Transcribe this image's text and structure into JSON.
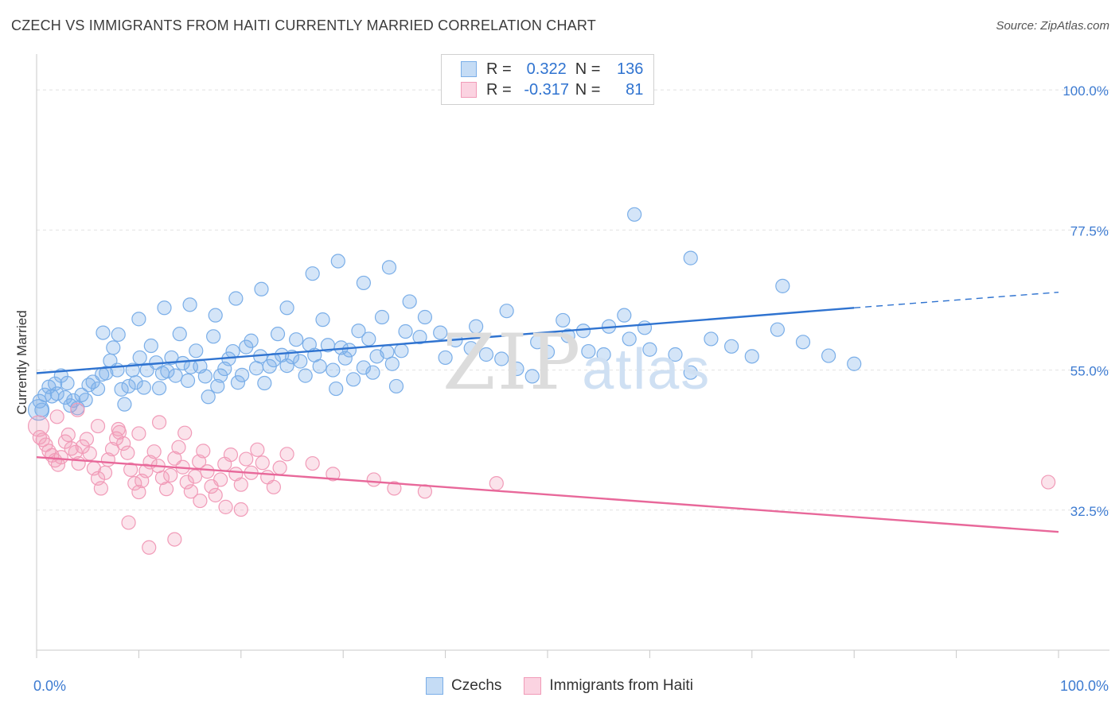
{
  "title": "CZECH VS IMMIGRANTS FROM HAITI CURRENTLY MARRIED CORRELATION CHART",
  "source": "Source: ZipAtlas.com",
  "watermark": {
    "zip": "ZIP",
    "atlas": "atlas"
  },
  "legend": {
    "rows": [
      {
        "r_label": "R =",
        "r_value": "0.322",
        "n_label": "N =",
        "n_value": "136",
        "color": "#7aaee8"
      },
      {
        "r_label": "R =",
        "r_value": "-0.317",
        "n_label": "N =",
        "n_value": "81",
        "color": "#f19bb8"
      }
    ]
  },
  "bottom_legend": [
    {
      "label": "Czechs",
      "color": "#7aaee8"
    },
    {
      "label": "Immigrants from Haiti",
      "color": "#f19bb8"
    }
  ],
  "chart_data": {
    "type": "scatter",
    "title": "CZECH VS IMMIGRANTS FROM HAITI CURRENTLY MARRIED CORRELATION CHART",
    "xlabel": "",
    "ylabel": "Currently Married",
    "xlim": [
      0,
      100
    ],
    "ylim": [
      10,
      105
    ],
    "x_tick_labels": [
      "0.0%",
      "100.0%"
    ],
    "y_ticks": [
      32.5,
      55.0,
      77.5,
      100.0
    ],
    "y_tick_labels": [
      "32.5%",
      "55.0%",
      "77.5%",
      "100.0%"
    ],
    "grid": true,
    "colors": {
      "czechs": "#2f73d0",
      "haiti": "#e8689a",
      "axis_label_blue": "#3d7bd1"
    },
    "series": [
      {
        "name": "Czechs",
        "trend": {
          "x0": 0,
          "y0": 54.5,
          "x1": 80,
          "y1": 65.0,
          "dashed_to_x": 100,
          "dashed_to_y": 67.5
        },
        "points": [
          [
            0.3,
            50.0
          ],
          [
            0.5,
            48.6
          ],
          [
            0.8,
            51.0
          ],
          [
            1.2,
            52.3
          ],
          [
            1.5,
            50.8
          ],
          [
            1.8,
            52.8
          ],
          [
            2.0,
            51.2
          ],
          [
            2.4,
            54.1
          ],
          [
            2.8,
            50.6
          ],
          [
            3.0,
            52.9
          ],
          [
            3.3,
            49.3
          ],
          [
            3.6,
            50.1
          ],
          [
            4.0,
            48.9
          ],
          [
            4.4,
            51.0
          ],
          [
            4.8,
            50.2
          ],
          [
            5.1,
            52.6
          ],
          [
            5.5,
            53.1
          ],
          [
            6.0,
            52.0
          ],
          [
            6.4,
            54.3
          ],
          [
            6.8,
            54.5
          ],
          [
            7.2,
            56.5
          ],
          [
            7.5,
            58.6
          ],
          [
            7.9,
            55.0
          ],
          [
            8.3,
            51.9
          ],
          [
            8.6,
            49.5
          ],
          [
            9.0,
            52.4
          ],
          [
            9.4,
            55.0
          ],
          [
            9.7,
            53.0
          ],
          [
            10.1,
            57.0
          ],
          [
            10.5,
            52.2
          ],
          [
            10.8,
            55.0
          ],
          [
            11.2,
            58.9
          ],
          [
            11.7,
            56.2
          ],
          [
            12.0,
            52.1
          ],
          [
            12.3,
            54.5
          ],
          [
            12.8,
            54.8
          ],
          [
            13.2,
            57.0
          ],
          [
            13.6,
            54.1
          ],
          [
            14.0,
            60.8
          ],
          [
            14.3,
            56.1
          ],
          [
            14.8,
            53.3
          ],
          [
            15.1,
            55.5
          ],
          [
            15.6,
            58.1
          ],
          [
            16.0,
            55.6
          ],
          [
            16.5,
            54.0
          ],
          [
            16.8,
            50.7
          ],
          [
            17.3,
            60.4
          ],
          [
            17.7,
            52.4
          ],
          [
            18.0,
            54.1
          ],
          [
            18.4,
            55.2
          ],
          [
            18.8,
            56.8
          ],
          [
            19.2,
            58.0
          ],
          [
            19.7,
            53.0
          ],
          [
            20.1,
            54.2
          ],
          [
            20.5,
            58.7
          ],
          [
            21.0,
            59.7
          ],
          [
            21.5,
            55.3
          ],
          [
            21.9,
            57.2
          ],
          [
            22.3,
            52.9
          ],
          [
            22.8,
            55.6
          ],
          [
            23.2,
            56.6
          ],
          [
            23.6,
            60.8
          ],
          [
            24.0,
            57.4
          ],
          [
            24.5,
            55.7
          ],
          [
            25.0,
            57.1
          ],
          [
            25.4,
            59.9
          ],
          [
            25.8,
            56.4
          ],
          [
            26.3,
            54.1
          ],
          [
            26.7,
            59.1
          ],
          [
            27.2,
            57.4
          ],
          [
            27.7,
            55.6
          ],
          [
            28.0,
            63.1
          ],
          [
            28.5,
            59.0
          ],
          [
            29.0,
            55.0
          ],
          [
            29.3,
            52.0
          ],
          [
            29.8,
            58.6
          ],
          [
            30.2,
            56.9
          ],
          [
            30.6,
            58.2
          ],
          [
            31.0,
            53.5
          ],
          [
            31.5,
            61.3
          ],
          [
            32.0,
            55.4
          ],
          [
            32.5,
            60.0
          ],
          [
            32.9,
            54.6
          ],
          [
            33.3,
            57.2
          ],
          [
            33.8,
            63.5
          ],
          [
            34.3,
            57.9
          ],
          [
            34.8,
            56.0
          ],
          [
            35.2,
            52.4
          ],
          [
            35.7,
            58.1
          ],
          [
            36.1,
            61.2
          ],
          [
            6.5,
            61.0
          ],
          [
            8.0,
            60.7
          ],
          [
            10.0,
            63.2
          ],
          [
            12.5,
            65.0
          ],
          [
            15.0,
            65.5
          ],
          [
            17.5,
            63.8
          ],
          [
            19.5,
            66.5
          ],
          [
            22.0,
            68.0
          ],
          [
            24.5,
            65.0
          ],
          [
            27.0,
            70.5
          ],
          [
            29.5,
            72.5
          ],
          [
            32.0,
            69.0
          ],
          [
            34.5,
            71.5
          ],
          [
            36.5,
            66.0
          ],
          [
            38.0,
            63.5
          ],
          [
            39.5,
            61.0
          ],
          [
            41.0,
            59.8
          ],
          [
            42.5,
            58.5
          ],
          [
            44.0,
            57.5
          ],
          [
            45.5,
            56.8
          ],
          [
            47.0,
            55.2
          ],
          [
            48.5,
            54.0
          ],
          [
            50.0,
            57.9
          ],
          [
            52.0,
            60.5
          ],
          [
            54.0,
            58.0
          ],
          [
            56.0,
            62.0
          ],
          [
            58.0,
            60.0
          ],
          [
            60.0,
            58.3
          ],
          [
            62.5,
            57.5
          ],
          [
            64.0,
            54.6
          ],
          [
            66.0,
            60.0
          ],
          [
            68.0,
            58.8
          ],
          [
            70.0,
            57.2
          ],
          [
            72.5,
            61.5
          ],
          [
            75.0,
            59.5
          ],
          [
            77.5,
            57.3
          ],
          [
            80.0,
            56.0
          ],
          [
            58.5,
            80.0
          ],
          [
            64.0,
            73.0
          ],
          [
            73.0,
            68.5
          ],
          [
            37.5,
            60.3
          ],
          [
            40.0,
            57.0
          ],
          [
            43.0,
            62.0
          ],
          [
            46.0,
            64.5
          ],
          [
            49.0,
            59.5
          ],
          [
            51.5,
            63.0
          ],
          [
            53.5,
            61.3
          ],
          [
            55.5,
            57.5
          ],
          [
            57.5,
            63.8
          ],
          [
            59.5,
            61.8
          ]
        ]
      },
      {
        "name": "Immigrants from Haiti",
        "trend": {
          "x0": 0,
          "y0": 41.0,
          "x1": 100,
          "y1": 29.0
        },
        "points": [
          [
            0.3,
            44.2
          ],
          [
            0.6,
            43.8
          ],
          [
            0.9,
            43.0
          ],
          [
            1.2,
            42.0
          ],
          [
            1.5,
            41.3
          ],
          [
            1.8,
            40.5
          ],
          [
            2.1,
            39.8
          ],
          [
            2.4,
            41.0
          ],
          [
            2.8,
            43.5
          ],
          [
            3.1,
            44.6
          ],
          [
            3.4,
            42.4
          ],
          [
            3.8,
            41.8
          ],
          [
            4.1,
            40.0
          ],
          [
            4.5,
            42.7
          ],
          [
            4.9,
            43.9
          ],
          [
            5.2,
            41.6
          ],
          [
            5.6,
            39.2
          ],
          [
            6.0,
            37.6
          ],
          [
            6.3,
            36.0
          ],
          [
            6.7,
            38.5
          ],
          [
            7.0,
            40.6
          ],
          [
            7.4,
            42.3
          ],
          [
            7.8,
            44.0
          ],
          [
            8.1,
            45.0
          ],
          [
            8.5,
            43.2
          ],
          [
            8.9,
            41.7
          ],
          [
            9.2,
            39.0
          ],
          [
            9.6,
            36.8
          ],
          [
            10.0,
            35.4
          ],
          [
            10.3,
            37.2
          ],
          [
            10.7,
            38.8
          ],
          [
            11.1,
            40.2
          ],
          [
            11.5,
            41.9
          ],
          [
            11.9,
            39.6
          ],
          [
            12.3,
            37.7
          ],
          [
            12.7,
            35.9
          ],
          [
            13.1,
            38.1
          ],
          [
            13.5,
            40.8
          ],
          [
            13.9,
            42.6
          ],
          [
            14.3,
            39.4
          ],
          [
            14.7,
            37.0
          ],
          [
            15.1,
            35.5
          ],
          [
            15.5,
            37.9
          ],
          [
            15.9,
            40.3
          ],
          [
            16.3,
            42.0
          ],
          [
            16.7,
            38.7
          ],
          [
            17.1,
            36.3
          ],
          [
            17.5,
            34.9
          ],
          [
            18.0,
            37.4
          ],
          [
            18.4,
            39.9
          ],
          [
            19.0,
            41.4
          ],
          [
            19.5,
            38.3
          ],
          [
            20.0,
            36.6
          ],
          [
            20.5,
            40.7
          ],
          [
            21.0,
            38.5
          ],
          [
            21.6,
            42.2
          ],
          [
            22.1,
            40.1
          ],
          [
            22.6,
            37.8
          ],
          [
            23.2,
            36.2
          ],
          [
            23.8,
            39.3
          ],
          [
            2.0,
            47.5
          ],
          [
            4.0,
            48.6
          ],
          [
            6.0,
            46.0
          ],
          [
            8.0,
            45.5
          ],
          [
            10.0,
            44.8
          ],
          [
            12.0,
            46.6
          ],
          [
            14.5,
            44.9
          ],
          [
            16.0,
            34.0
          ],
          [
            18.5,
            33.0
          ],
          [
            9.0,
            30.5
          ],
          [
            11.0,
            26.5
          ],
          [
            13.5,
            27.8
          ],
          [
            20.0,
            32.6
          ],
          [
            24.5,
            41.5
          ],
          [
            27.0,
            40.0
          ],
          [
            29.0,
            38.3
          ],
          [
            33.0,
            37.4
          ],
          [
            35.0,
            36.0
          ],
          [
            38.0,
            35.5
          ],
          [
            45.0,
            36.8
          ],
          [
            99.0,
            37.0
          ]
        ]
      }
    ]
  }
}
